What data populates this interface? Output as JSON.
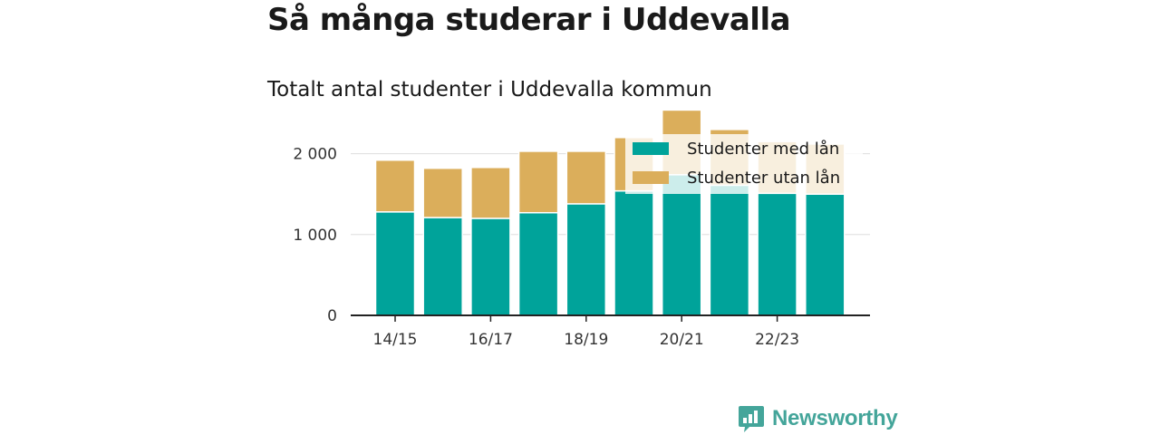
{
  "header": {
    "title": "Så många studerar i Uddevalla",
    "subtitle": "Totalt antal studenter i Uddevalla kommun"
  },
  "brand": {
    "name": "Newsworthy",
    "icon": "chart-bubble-icon",
    "color": "#44a59a"
  },
  "chart_data": {
    "type": "bar",
    "stacked": true,
    "categories": [
      "14/15",
      "15/16",
      "16/17",
      "17/18",
      "18/19",
      "19/20",
      "20/21",
      "21/22",
      "22/23",
      "23/24"
    ],
    "x_tick_labels": [
      "14/15",
      "16/17",
      "18/19",
      "20/21",
      "22/23"
    ],
    "series": [
      {
        "name": "Studenter med lån",
        "color": "#00a39a",
        "values": [
          1280,
          1210,
          1200,
          1270,
          1380,
          1540,
          1740,
          1610,
          1510,
          1500
        ]
      },
      {
        "name": "Studenter utan lån",
        "color": "#dbae5b",
        "values": [
          640,
          610,
          630,
          760,
          650,
          660,
          800,
          690,
          640,
          620
        ]
      }
    ],
    "y_ticks": [
      0,
      1000,
      2000
    ],
    "y_tick_labels": [
      "0",
      "1 000",
      "2 000"
    ],
    "ylim": [
      0,
      2500
    ],
    "grid": true,
    "legend_position": "top-right"
  }
}
